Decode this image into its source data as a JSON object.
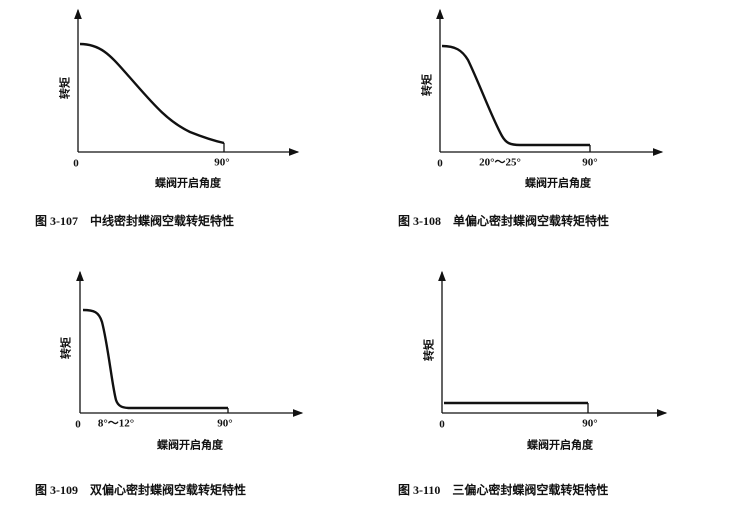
{
  "panels": [
    {
      "y_label": "转矩",
      "x_label": "蝶阀开启角度",
      "origin": "0",
      "end_tick": "90°",
      "caption": "图 3-107　中线密封蝶阀空载转矩特性"
    },
    {
      "y_label": "转矩",
      "x_label": "蝶阀开启角度",
      "origin": "0",
      "mid_tick": "20°～25°",
      "end_tick": "90°",
      "caption": "图 3-108　单偏心密封蝶阀空载转矩特性"
    },
    {
      "y_label": "转矩",
      "x_label": "蝶阀开启角度",
      "origin": "0",
      "mid_tick": "8°～12°",
      "end_tick": "90°",
      "caption": "图 3-109　双偏心密封蝶阀空载转矩特性"
    },
    {
      "y_label": "转矩",
      "x_label": "蝶阀开启角度",
      "origin": "0",
      "end_tick": "90°",
      "caption": "图 3-110　三偏心密封蝶阀空载转矩特性"
    }
  ]
}
